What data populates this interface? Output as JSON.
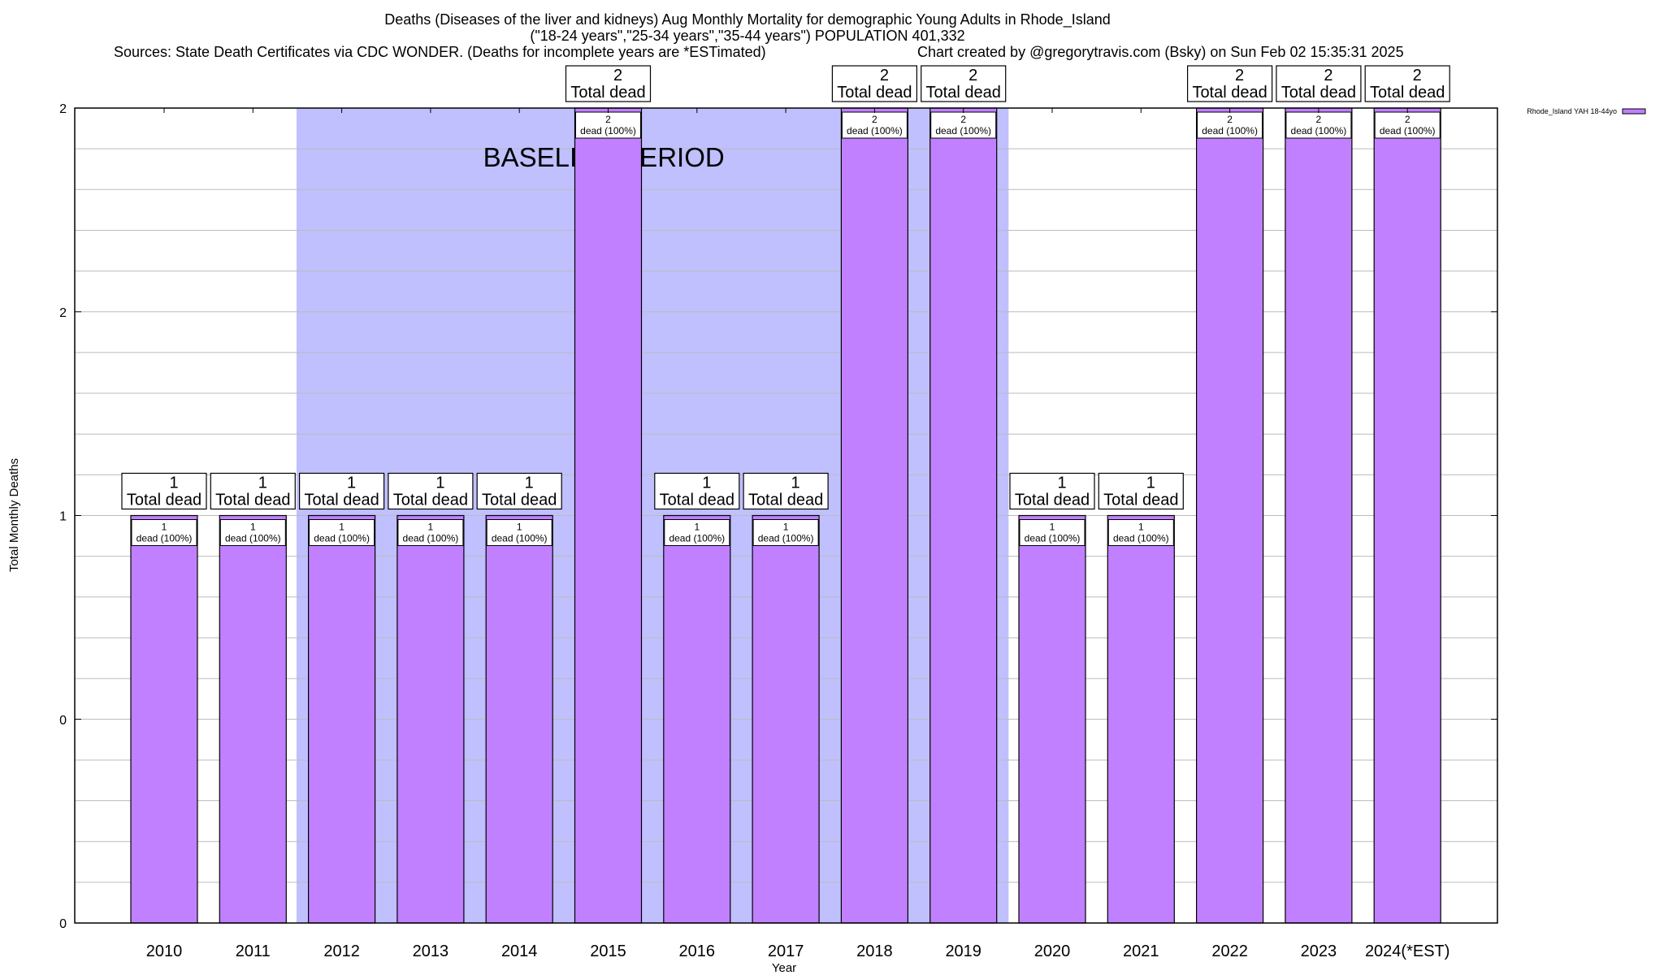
{
  "header": {
    "title_line1": "Deaths (Diseases of the liver and kidneys) Aug Monthly Mortality for demographic Young Adults in Rhode_Island",
    "title_line2": "(\"18-24 years\",\"25-34 years\",\"35-44 years\") POPULATION 401,332",
    "sources": "Sources: State Death Certificates via CDC WONDER. (Deaths for incomplete years are *ESTimated)",
    "credit": "Chart created by @gregorytravis.com (Bsky) on Sun Feb 02 15:35:31 2025"
  },
  "chart_data": {
    "type": "bar",
    "title": "Deaths (Diseases of the liver and kidneys) Aug Monthly Mortality for demographic Young Adults in Rhode_Island",
    "xlabel": "Year",
    "ylabel": "Total Monthly Deaths",
    "ylim": [
      0,
      2
    ],
    "y_ticks": [
      {
        "value": 0,
        "label": "0"
      },
      {
        "value": 0.5,
        "label": "0"
      },
      {
        "value": 1,
        "label": "1"
      },
      {
        "value": 1.5,
        "label": "2"
      },
      {
        "value": 2,
        "label": "2"
      }
    ],
    "grid": true,
    "grid_step": 0.1,
    "legend": {
      "position": "top-right",
      "entries": [
        {
          "name": "Rhode_Island YAH 18-44yo",
          "color": "#c080ff"
        }
      ]
    },
    "categories": [
      "2010",
      "2011",
      "2012",
      "2013",
      "2014",
      "2015",
      "2016",
      "2017",
      "2018",
      "2019",
      "2020",
      "2021",
      "2022",
      "2023",
      "2024(*EST)"
    ],
    "series": [
      {
        "name": "Rhode_Island YAH 18-44yo",
        "color": "#c080ff",
        "values": [
          1,
          1,
          1,
          1,
          1,
          2,
          1,
          1,
          2,
          2,
          1,
          1,
          2,
          2,
          2
        ]
      }
    ],
    "total_labels": [
      {
        "count": "1",
        "text": "Total dead"
      },
      {
        "count": "1",
        "text": "Total dead"
      },
      {
        "count": "1",
        "text": "Total dead"
      },
      {
        "count": "1",
        "text": "Total dead"
      },
      {
        "count": "1",
        "text": "Total dead"
      },
      {
        "count": "2",
        "text": "Total dead"
      },
      {
        "count": "1",
        "text": "Total dead"
      },
      {
        "count": "1",
        "text": "Total dead"
      },
      {
        "count": "2",
        "text": "Total dead"
      },
      {
        "count": "2",
        "text": "Total dead"
      },
      {
        "count": "1",
        "text": "Total dead"
      },
      {
        "count": "1",
        "text": "Total dead"
      },
      {
        "count": "2",
        "text": "Total dead"
      },
      {
        "count": "2",
        "text": "Total dead"
      },
      {
        "count": "2",
        "text": "Total dead"
      }
    ],
    "bar_labels": [
      {
        "count": "1",
        "text": "dead (100%)"
      },
      {
        "count": "1",
        "text": "dead (100%)"
      },
      {
        "count": "1",
        "text": "dead (100%)"
      },
      {
        "count": "1",
        "text": "dead (100%)"
      },
      {
        "count": "1",
        "text": "dead (100%)"
      },
      {
        "count": "2",
        "text": "dead (100%)"
      },
      {
        "count": "1",
        "text": "dead (100%)"
      },
      {
        "count": "1",
        "text": "dead (100%)"
      },
      {
        "count": "2",
        "text": "dead (100%)"
      },
      {
        "count": "2",
        "text": "dead (100%)"
      },
      {
        "count": "1",
        "text": "dead (100%)"
      },
      {
        "count": "1",
        "text": "dead (100%)"
      },
      {
        "count": "2",
        "text": "dead (100%)"
      },
      {
        "count": "2",
        "text": "dead (100%)"
      },
      {
        "count": "2",
        "text": "dead (100%)"
      }
    ],
    "baseline_period": {
      "label": "BASELINE PERIOD",
      "start": "2012",
      "end": "2019",
      "color": "#c0c0ff"
    }
  }
}
